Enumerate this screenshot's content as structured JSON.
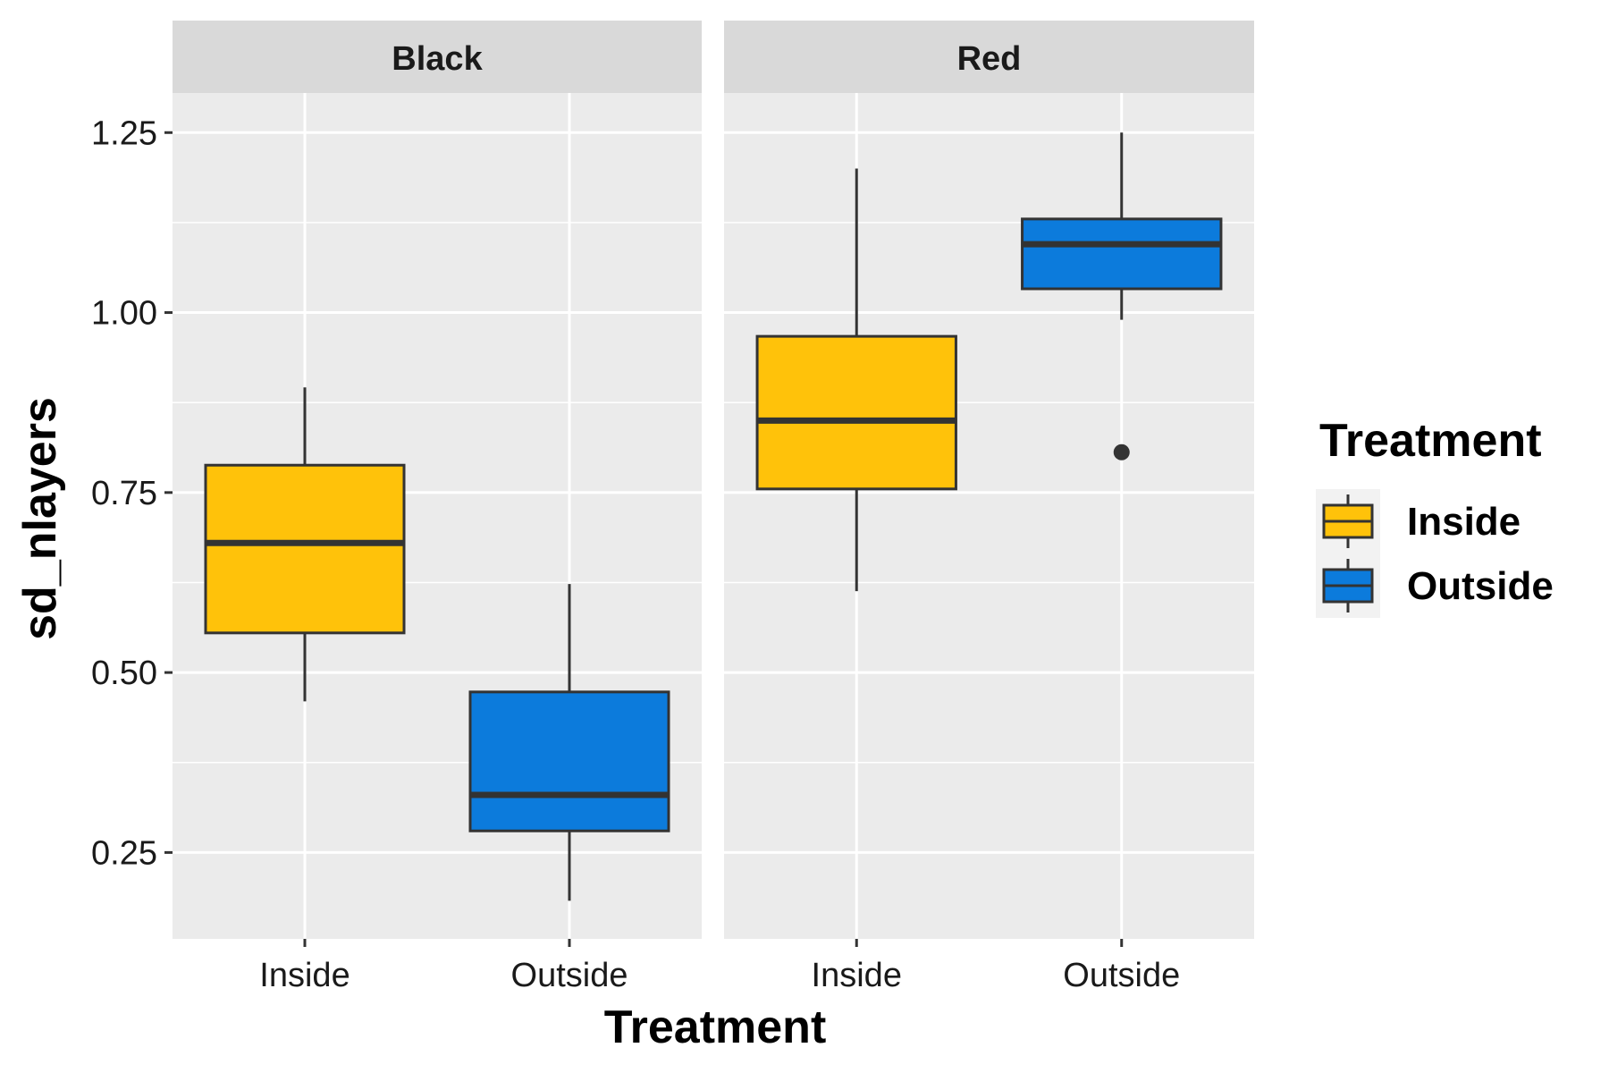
{
  "chart_data": {
    "type": "boxplot",
    "facets": [
      {
        "label": "Black",
        "boxes": [
          {
            "category": "Inside",
            "whisker_low": 0.46,
            "q1": 0.555,
            "median": 0.68,
            "q3": 0.788,
            "whisker_high": 0.896,
            "outliers": []
          },
          {
            "category": "Outside",
            "whisker_low": 0.183,
            "q1": 0.28,
            "median": 0.33,
            "q3": 0.473,
            "whisker_high": 0.623,
            "outliers": []
          }
        ]
      },
      {
        "label": "Red",
        "boxes": [
          {
            "category": "Inside",
            "whisker_low": 0.613,
            "q1": 0.755,
            "median": 0.85,
            "q3": 0.967,
            "whisker_high": 1.2,
            "outliers": []
          },
          {
            "category": "Outside",
            "whisker_low": 0.99,
            "q1": 1.033,
            "median": 1.095,
            "q3": 1.13,
            "whisker_high": 1.25,
            "outliers": [
              0.806
            ]
          }
        ]
      }
    ],
    "categories": [
      "Inside",
      "Outside"
    ],
    "xlabel": "Treatment",
    "ylabel": "sd_nlayers",
    "yticks": [
      "0.25",
      "0.50",
      "0.75",
      "1.00",
      "1.25"
    ],
    "ylim": [
      0.13,
      1.305
    ],
    "grid": true,
    "legend": {
      "title": "Treatment",
      "position": "right",
      "entries": [
        {
          "label": "Inside",
          "color": "#FFC20A"
        },
        {
          "label": "Outside",
          "color": "#0C7BDC"
        }
      ]
    },
    "colors": {
      "panel_background": "#EBEBEB",
      "strip_background": "#D9D9D9",
      "gridline": "#FFFFFF",
      "box_outline": "#333333"
    }
  }
}
